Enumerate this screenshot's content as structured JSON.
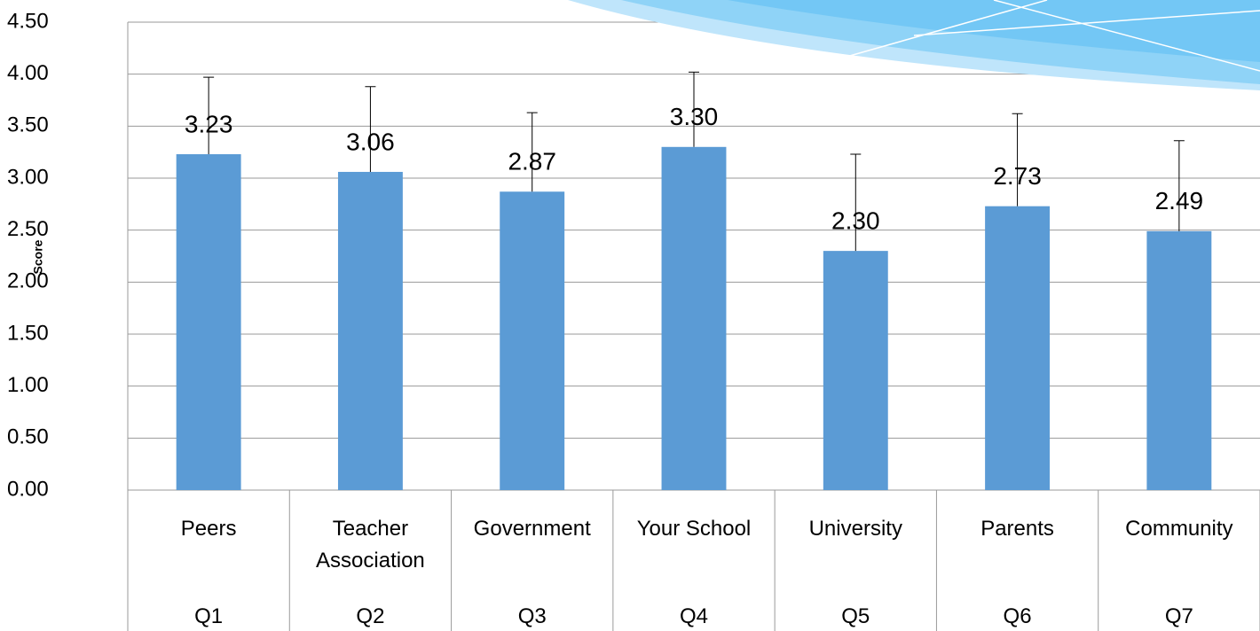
{
  "chart_data": {
    "type": "bar",
    "y_label": "Score",
    "categories": [
      "Peers",
      "Teacher Association",
      "Government",
      "Your School",
      "University",
      "Parents",
      "Community"
    ],
    "category_groups": [
      "Q1",
      "Q2",
      "Q3",
      "Q4",
      "Q5",
      "Q6",
      "Q7"
    ],
    "values": [
      3.23,
      3.06,
      2.87,
      3.3,
      2.3,
      2.73,
      2.49
    ],
    "value_labels": [
      "3.23",
      "3.06",
      "2.87",
      "3.30",
      "2.30",
      "2.73",
      "2.49"
    ],
    "errors": [
      0.74,
      0.82,
      0.76,
      0.72,
      0.93,
      0.89,
      0.87
    ],
    "color": "#5b9bd5",
    "ylim": [
      0,
      4.5
    ],
    "yticks": [
      {
        "value": 0,
        "label": "0.00"
      },
      {
        "value": 0.5,
        "label": "0.50"
      },
      {
        "value": 1,
        "label": "1.00"
      },
      {
        "value": 1.5,
        "label": "1.50"
      },
      {
        "value": 2,
        "label": "2.00"
      },
      {
        "value": 2.5,
        "label": "2.50"
      },
      {
        "value": 3,
        "label": "3.00"
      },
      {
        "value": 3.5,
        "label": "3.50"
      },
      {
        "value": 4,
        "label": "4.00"
      },
      {
        "value": 4.5,
        "label": "4.50"
      }
    ],
    "grid": true
  }
}
